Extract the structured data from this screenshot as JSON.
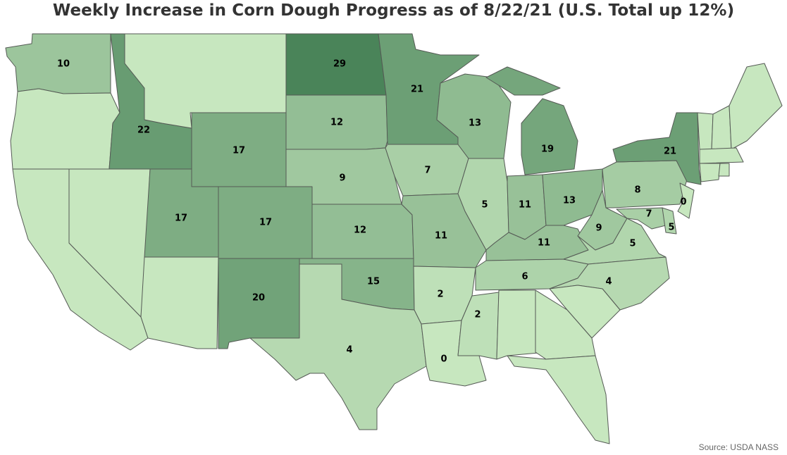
{
  "title": "Weekly Increase in Corn Dough Progress as of 8/22/21 (U.S. Total up 12%)",
  "source": "Source: USDA NASS",
  "color_scale": {
    "min_value": 0,
    "max_value": 29,
    "low_color": "#c7e7bf",
    "high_color": "#4a8459"
  },
  "states": [
    {
      "name": "Washington",
      "value": 10
    },
    {
      "name": "Oregon",
      "value": null
    },
    {
      "name": "California",
      "value": null
    },
    {
      "name": "Nevada",
      "value": null
    },
    {
      "name": "Idaho",
      "value": 22
    },
    {
      "name": "Montana",
      "value": null
    },
    {
      "name": "Wyoming",
      "value": 17
    },
    {
      "name": "Utah",
      "value": 17
    },
    {
      "name": "Arizona",
      "value": null
    },
    {
      "name": "Colorado",
      "value": 17
    },
    {
      "name": "New Mexico",
      "value": 20
    },
    {
      "name": "North Dakota",
      "value": 29
    },
    {
      "name": "South Dakota",
      "value": 12
    },
    {
      "name": "Nebraska",
      "value": 9
    },
    {
      "name": "Kansas",
      "value": 12
    },
    {
      "name": "Oklahoma",
      "value": 15
    },
    {
      "name": "Texas",
      "value": 4
    },
    {
      "name": "Minnesota",
      "value": 21
    },
    {
      "name": "Iowa",
      "value": 7
    },
    {
      "name": "Missouri",
      "value": 11
    },
    {
      "name": "Arkansas",
      "value": 2
    },
    {
      "name": "Louisiana",
      "value": 0
    },
    {
      "name": "Wisconsin",
      "value": 13
    },
    {
      "name": "Illinois",
      "value": 5
    },
    {
      "name": "Mississippi",
      "value": 2
    },
    {
      "name": "Michigan",
      "value": 19
    },
    {
      "name": "Indiana",
      "value": 11
    },
    {
      "name": "Kentucky",
      "value": 11
    },
    {
      "name": "Tennessee",
      "value": 6
    },
    {
      "name": "Alabama",
      "value": null
    },
    {
      "name": "Ohio",
      "value": 13
    },
    {
      "name": "West Virginia",
      "value": 9
    },
    {
      "name": "Virginia",
      "value": 5
    },
    {
      "name": "North Carolina",
      "value": 4
    },
    {
      "name": "South Carolina",
      "value": null
    },
    {
      "name": "Georgia",
      "value": null
    },
    {
      "name": "Florida",
      "value": null
    },
    {
      "name": "Pennsylvania",
      "value": 8
    },
    {
      "name": "New York",
      "value": 21
    },
    {
      "name": "Maryland",
      "value": 7
    },
    {
      "name": "Delaware",
      "value": 5
    },
    {
      "name": "New Jersey",
      "value": 0
    },
    {
      "name": "Vermont",
      "value": null
    },
    {
      "name": "New Hampshire",
      "value": null
    },
    {
      "name": "Maine",
      "value": null
    },
    {
      "name": "Massachusetts",
      "value": null
    },
    {
      "name": "Connecticut",
      "value": null
    },
    {
      "name": "Rhode Island",
      "value": null
    }
  ]
}
